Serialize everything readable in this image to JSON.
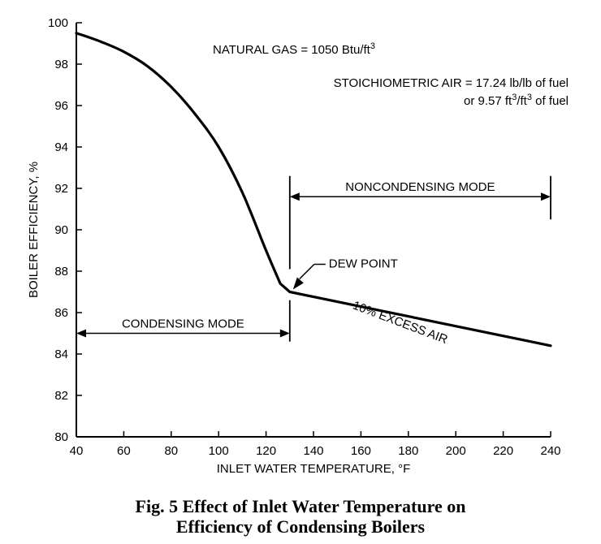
{
  "chart_data": {
    "type": "line",
    "xlabel": "INLET WATER TEMPERATURE, °F",
    "ylabel": "BOILER EFFICIENCY, %",
    "xlim": [
      40,
      240
    ],
    "ylim": [
      80,
      100
    ],
    "x_ticks": [
      40,
      60,
      80,
      100,
      120,
      140,
      160,
      180,
      200,
      220,
      240
    ],
    "y_ticks": [
      80,
      82,
      84,
      86,
      88,
      90,
      92,
      94,
      96,
      98,
      100
    ],
    "grid": false,
    "series": [
      {
        "name": "10% EXCESS AIR",
        "x": [
          40,
          50,
          60,
          70,
          80,
          90,
          100,
          110,
          120,
          126,
          130,
          240
        ],
        "y": [
          99.5,
          99.1,
          98.6,
          97.9,
          96.9,
          95.6,
          94.0,
          91.8,
          89.0,
          87.4,
          87.0,
          84.4
        ]
      }
    ],
    "regions": {
      "condensing": {
        "label": "CONDENSING MODE",
        "x_from": 40,
        "x_to": 130,
        "y": 85.0
      },
      "noncondensing": {
        "label": "NONCONDENSING MODE",
        "x_from": 130,
        "x_to": 240,
        "y": 91.6
      }
    },
    "annotations": {
      "dew_point": {
        "label": "DEW POINT",
        "x": 130,
        "y": 87.0
      },
      "curve_label": "10% EXCESS AIR",
      "natural_gas": {
        "text": "NATURAL GAS = 1050 Btu/ft",
        "sup": "3"
      },
      "stoich_line1": "STOICHIOMETRIC AIR = 17.24 lb/lb of fuel",
      "stoich_line2": {
        "prefix": "or 9.57 ft",
        "sup1": "3",
        "mid": "/ft",
        "sup2": "3",
        "suffix": " of fuel"
      }
    }
  },
  "caption": {
    "line1": "Fig. 5    Effect of Inlet Water Temperature on",
    "line2": "Efficiency of Condensing Boilers"
  }
}
